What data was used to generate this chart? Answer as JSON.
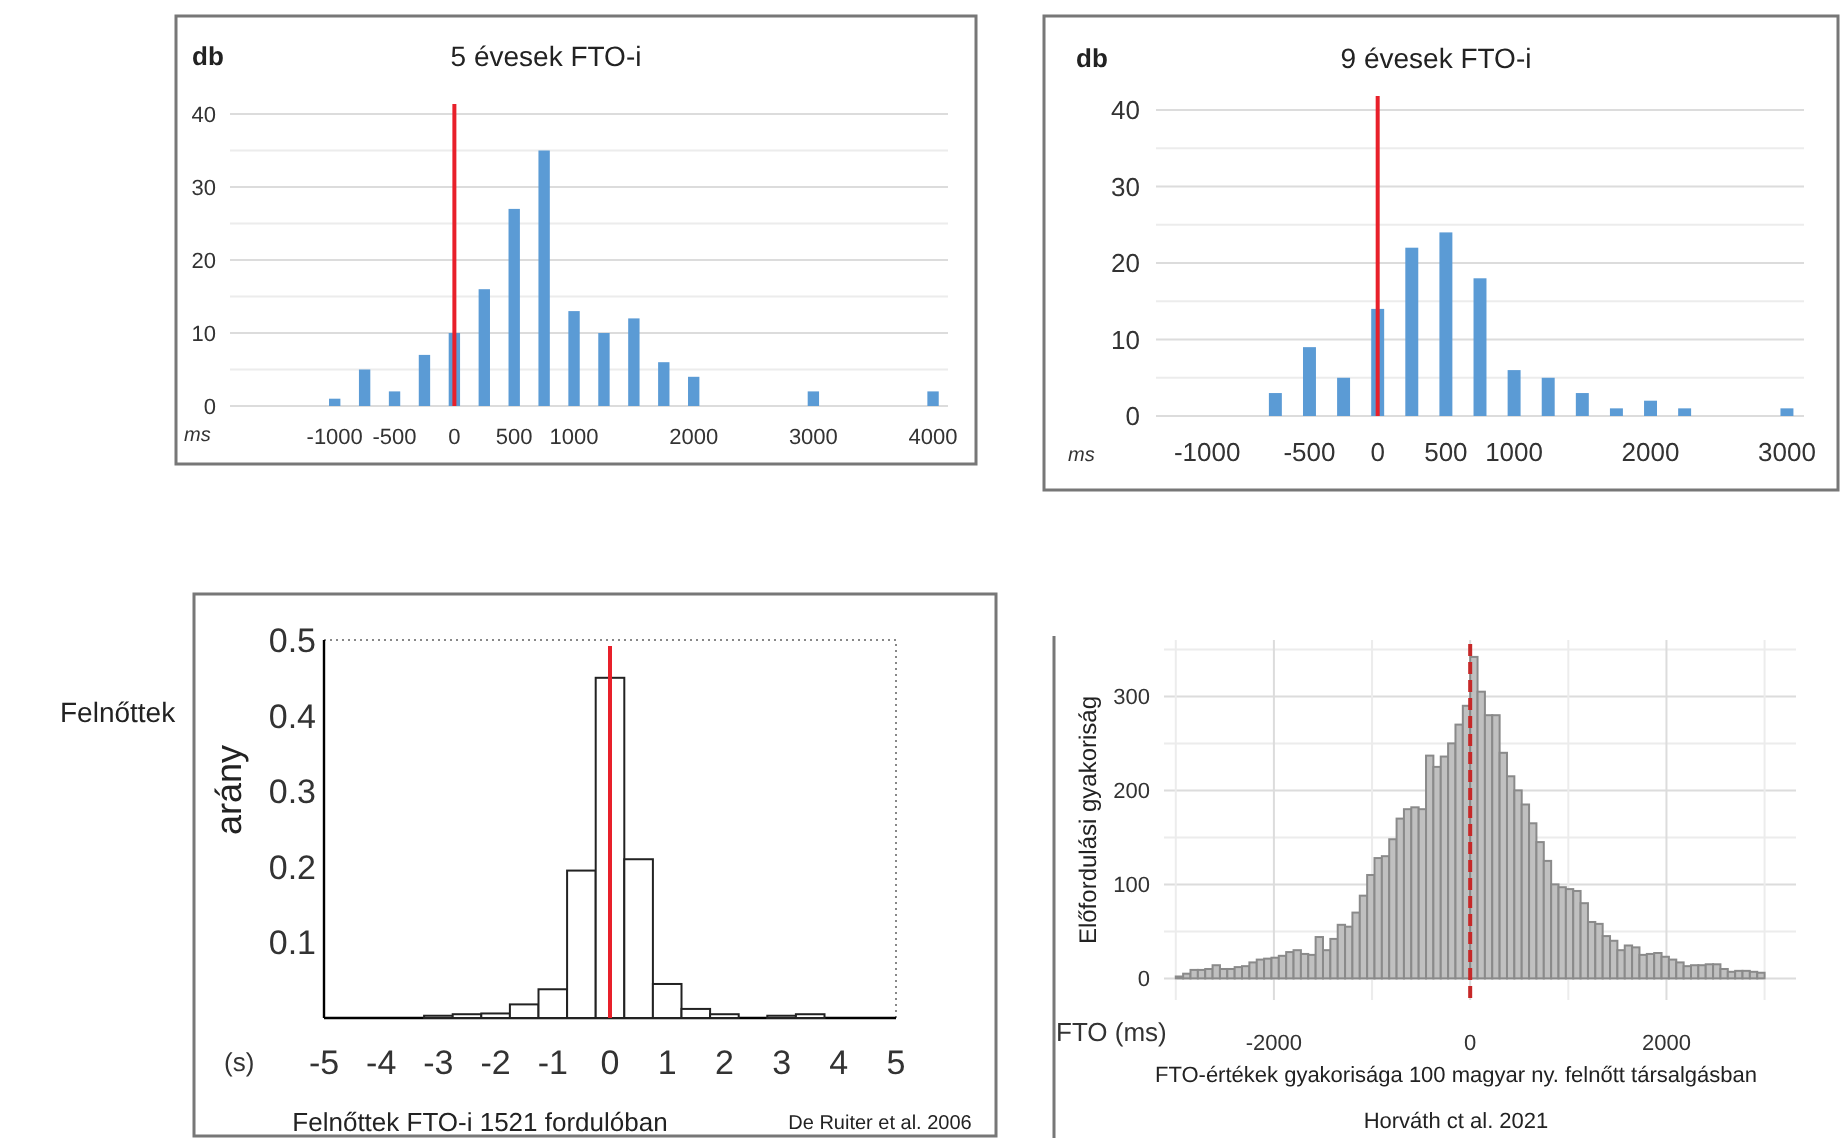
{
  "chart_data": [
    {
      "type": "bar",
      "title": "5 évesek FTO-i",
      "xlabel": "ms",
      "ylabel": "db",
      "categories": [
        null,
        null,
        null,
        "-1000",
        null,
        "-500",
        null,
        "0",
        null,
        "500",
        null,
        "1000",
        null,
        null,
        null,
        "2000",
        null,
        null,
        null,
        "3000",
        null,
        null,
        null,
        "4000"
      ],
      "values": [
        null,
        null,
        null,
        1,
        5,
        2,
        7,
        10,
        16,
        27,
        35,
        13,
        10,
        12,
        6,
        4,
        null,
        null,
        null,
        2,
        null,
        null,
        null,
        2
      ],
      "color": "#5b9bd5",
      "ylim": [
        0,
        40
      ],
      "yticks": [
        0,
        {
          "value": 5,
          "label": null
        },
        10,
        {
          "value": 15,
          "label": null
        },
        20,
        {
          "value": 25,
          "label": null
        },
        30,
        {
          "value": 35,
          "label": null
        },
        40
      ],
      "grid": "y",
      "ref_lines": [
        {
          "axis": "x",
          "value": "0",
          "color": "#e8202a"
        }
      ]
    },
    {
      "type": "bar",
      "title": "9 évesek FTO-i",
      "xlabel": "ms",
      "ylabel": "db",
      "categories": [
        null,
        "-1000",
        null,
        null,
        "-500",
        null,
        "0",
        null,
        "500",
        null,
        "1000",
        null,
        null,
        null,
        "2000",
        null,
        null,
        null,
        "3000"
      ],
      "values": [
        null,
        null,
        null,
        3,
        9,
        5,
        14,
        22,
        24,
        18,
        6,
        5,
        3,
        1,
        2,
        1,
        null,
        null,
        1
      ],
      "color": "#5b9bd5",
      "ylim": [
        0,
        40
      ],
      "yticks": [
        0,
        {
          "value": 5,
          "label": null
        },
        10,
        {
          "value": 15,
          "label": null
        },
        20,
        {
          "value": 25,
          "label": null
        },
        30,
        {
          "value": 35,
          "label": null
        },
        40
      ],
      "grid": "y",
      "ref_lines": [
        {
          "axis": "x",
          "value": "0",
          "color": "#e8202a"
        }
      ]
    },
    {
      "type": "histogram",
      "xlabel": "(s)",
      "ylabel": "arány",
      "bins": [
        -3.25,
        -2.75,
        -2.25,
        -1.75,
        -1.25,
        -0.75,
        -0.25,
        0.25,
        0.75,
        1.25,
        1.75,
        2.25,
        2.75,
        3.25,
        3.75
      ],
      "values": [
        0.003,
        0.005,
        0.006,
        0.018,
        0.038,
        0.195,
        0.45,
        0.21,
        0.045,
        0.012,
        0.005,
        null,
        0.003,
        0.005
      ],
      "color": "#ffffff",
      "xlim": [
        -5,
        5
      ],
      "xticks": [
        -5,
        -4,
        -3,
        -2,
        -1,
        0,
        1,
        2,
        3,
        4,
        5
      ],
      "ylim": [
        0,
        0.5
      ],
      "yticks": [
        0.1,
        0.2,
        0.3,
        0.4,
        0.5
      ],
      "ref_lines": [
        {
          "axis": "x",
          "value": 0,
          "color": "#e8202a"
        }
      ],
      "annotations": [
        "Felnőttek",
        "Felnőttek FTO-i 1521 fordulóban",
        "De Ruiter et al. 2006"
      ]
    },
    {
      "type": "histogram",
      "xlabel": "FTO (ms)",
      "ylabel": "Előfordulási gyakoriság",
      "bins": [
        -3000,
        -2925,
        -2850,
        -2775,
        -2700,
        -2625,
        -2550,
        -2475,
        -2400,
        -2325,
        -2250,
        -2175,
        -2100,
        -2025,
        -1950,
        -1875,
        -1800,
        -1725,
        -1650,
        -1575,
        -1500,
        -1425,
        -1350,
        -1275,
        -1200,
        -1125,
        -1050,
        -975,
        -900,
        -825,
        -750,
        -675,
        -600,
        -525,
        -450,
        -375,
        -300,
        -225,
        -150,
        -75,
        0,
        75,
        150,
        225,
        300,
        375,
        450,
        525,
        600,
        675,
        750,
        825,
        900,
        975,
        1050,
        1125,
        1200,
        1275,
        1350,
        1425,
        1500,
        1575,
        1650,
        1725,
        1800,
        1875,
        1950,
        2025,
        2100,
        2175,
        2250,
        2325,
        2400,
        2475,
        2550,
        2625,
        2700,
        2775,
        2850,
        2925,
        3000
      ],
      "values": [
        2,
        5,
        9,
        9,
        10,
        14,
        10,
        10,
        12,
        13,
        17,
        20,
        21,
        22,
        24,
        28,
        30,
        26,
        25,
        44,
        30,
        42,
        57,
        55,
        70,
        88,
        110,
        128,
        130,
        148,
        170,
        180,
        182,
        180,
        237,
        225,
        236,
        250,
        270,
        290,
        342,
        305,
        280,
        280,
        240,
        215,
        200,
        185,
        165,
        145,
        125,
        100,
        97,
        95,
        93,
        80,
        60,
        58,
        45,
        40,
        30,
        35,
        33,
        25,
        26,
        27,
        23,
        20,
        17,
        13,
        14,
        14,
        15,
        15,
        10,
        7,
        8,
        8,
        7,
        6
      ],
      "color": "#c0c0c0",
      "xlim": [
        -3120,
        3320
      ],
      "xticks": [
        {
          "value": -3000,
          "label": null
        },
        -2000,
        {
          "value": -1000,
          "label": null
        },
        0,
        {
          "value": 1000,
          "label": null
        },
        2000,
        {
          "value": 3000,
          "label": null
        }
      ],
      "ylim": [
        -23,
        360
      ],
      "yticks": [
        0,
        {
          "value": 50,
          "label": null
        },
        100,
        {
          "value": 150,
          "label": null
        },
        200,
        {
          "value": 250,
          "label": null
        },
        300,
        {
          "value": 350,
          "label": null
        }
      ],
      "grid": true,
      "ref_lines": [
        {
          "axis": "x",
          "value": 0,
          "color": "#c62828",
          "line_style": "dashed"
        }
      ],
      "annotations": [
        "FTO-értékek gyakorisága 100 magyar ny. felnőtt társalgásban",
        "Horváth ct al. 2021"
      ]
    }
  ]
}
